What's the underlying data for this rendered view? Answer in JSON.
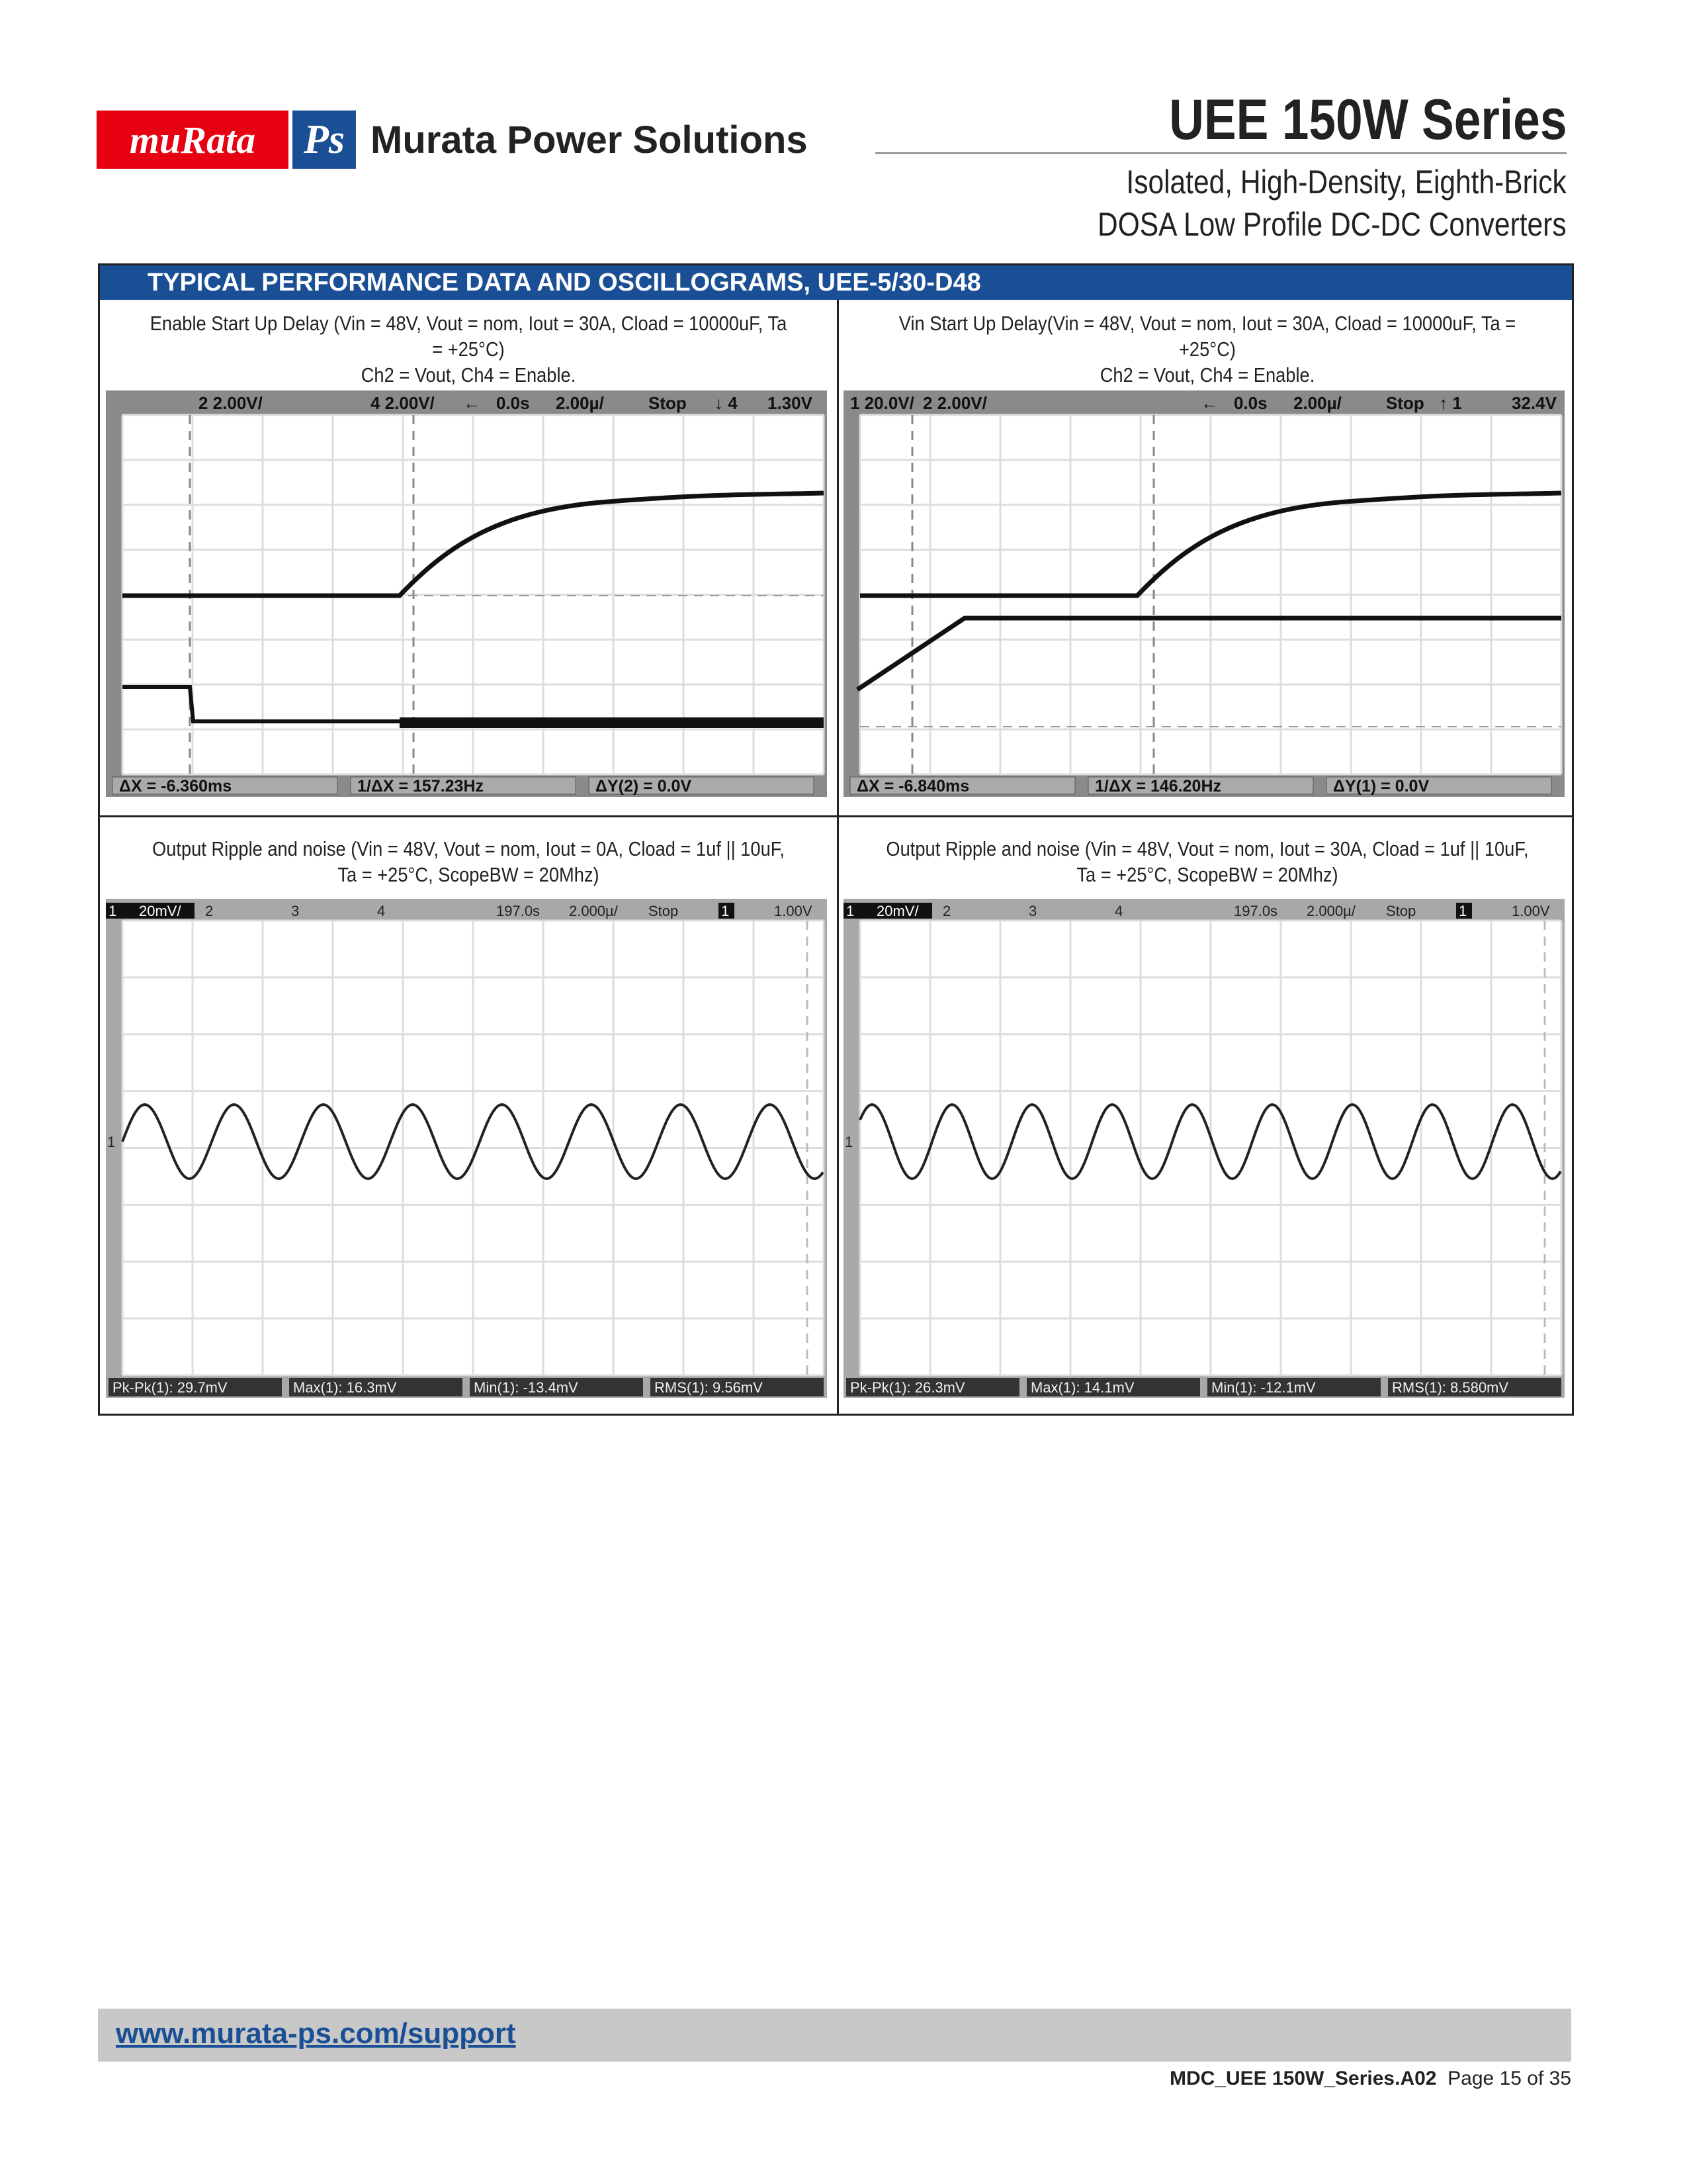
{
  "header": {
    "logo_murata": "muRata",
    "logo_ps": "Ps",
    "company": "Murata Power Solutions",
    "title": "UEE 150W Series",
    "subtitle_line1": "Isolated, High-Density, Eighth-Brick",
    "subtitle_line2": "DOSA Low Profile DC-DC Converters"
  },
  "section": {
    "title": "TYPICAL PERFORMANCE DATA AND OSCILLOGRAMS, UEE-5/30-D48"
  },
  "panels": [
    {
      "caption1": "Enable Start Up Delay (Vin = 48V, Vout = nom, Iout = 30A, Cload = 10000uF, Ta = +25°C)",
      "caption2": "Ch2 = Vout, Ch4 = Enable.",
      "scope_header": [
        "2 2.00V/",
        "4 2.00V/",
        "←",
        "0.0s",
        "2.00µ/",
        "Stop",
        "↓ 4",
        "1.30V"
      ],
      "scope_footer": [
        "ΔX = -6.360ms",
        "1/ΔX = 157.23Hz",
        "ΔY(2) = 0.0V"
      ]
    },
    {
      "caption1": "Vin Start Up Delay(Vin = 48V, Vout = nom, Iout = 30A, Cload = 10000uF, Ta = +25°C)",
      "caption2": "Ch2 = Vout, Ch4 = Enable.",
      "scope_header": [
        "1 20.0V/",
        "2 2.00V/",
        "←",
        "0.0s",
        "2.00µ/",
        "Stop",
        "↑ 1",
        "32.4V"
      ],
      "scope_footer": [
        "ΔX = -6.840ms",
        "1/ΔX = 146.20Hz",
        "ΔY(1) = 0.0V"
      ]
    },
    {
      "caption1": "Output Ripple and noise (Vin = 48V, Vout = nom, Iout = 0A, Cload = 1uf || 10uF,",
      "caption2": "Ta = +25°C, ScopeBW = 20Mhz)",
      "scope_header": [
        "1",
        "20mV/",
        "2",
        "3",
        "4",
        "197.0s",
        "2.000µ/",
        "Stop",
        "1",
        "1.00V"
      ],
      "scope_footer": [
        "Pk-Pk(1): 29.7mV",
        "Max(1): 16.3mV",
        "Min(1): -13.4mV",
        "RMS(1): 9.56mV"
      ]
    },
    {
      "caption1": "Output Ripple and noise (Vin = 48V, Vout = nom, Iout = 30A, Cload = 1uf || 10uF,",
      "caption2": "Ta = +25°C, ScopeBW = 20Mhz)",
      "scope_header": [
        "1",
        "20mV/",
        "2",
        "3",
        "4",
        "197.0s",
        "2.000µ/",
        "Stop",
        "1",
        "1.00V"
      ],
      "scope_footer": [
        "Pk-Pk(1): 26.3mV",
        "Max(1): 14.1mV",
        "Min(1): -12.1mV",
        "RMS(1): 8.580mV"
      ]
    }
  ],
  "footer": {
    "link": "www.murata-ps.com/support",
    "doc_id": "MDC_UEE 150W_Series.A02",
    "page": "Page 15 of 35"
  }
}
